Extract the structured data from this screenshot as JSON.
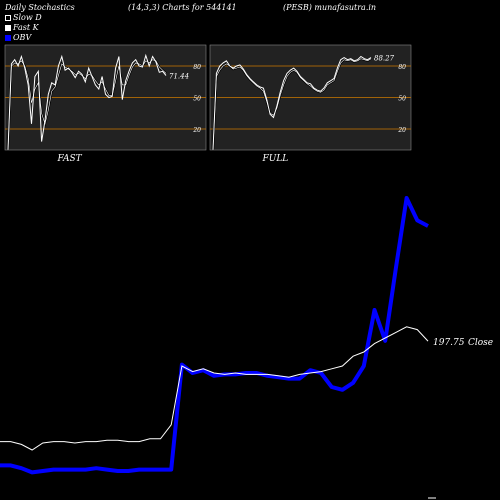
{
  "header": {
    "title": "Daily Stochastics",
    "params": "(14,3,3) Charts for 544141",
    "symbol": "(PESB) munafasutra.in"
  },
  "legend": [
    {
      "label": "Slow  D",
      "color": "#000000"
    },
    {
      "label": "Fast K",
      "color": "#ffffff"
    },
    {
      "label": "OBV",
      "color": "#0000ff"
    }
  ],
  "colors": {
    "background": "#000000",
    "panel": "#222222",
    "level_line": "#cc7a00",
    "obv": "#0000ff",
    "close": "#ffffff"
  },
  "chart_data": [
    {
      "type": "line",
      "panel": "FAST",
      "title": "FAST",
      "ylim": [
        0,
        100
      ],
      "yticks": [
        20,
        50,
        80
      ],
      "last_label": "71.44",
      "series": [
        {
          "name": "Fast K",
          "values": [
            0,
            82,
            86,
            80,
            89,
            78,
            62,
            25,
            70,
            75,
            8,
            28,
            53,
            64,
            62,
            80,
            89,
            76,
            78,
            74,
            69,
            75,
            72,
            65,
            78,
            70,
            62,
            58,
            70,
            53,
            50,
            51,
            78,
            89,
            48,
            66,
            75,
            83,
            86,
            80,
            79,
            90,
            80,
            89,
            84,
            74,
            75,
            71
          ]
        },
        {
          "name": "Slow  D",
          "values": [
            0,
            80,
            83,
            82,
            85,
            80,
            68,
            45,
            58,
            64,
            35,
            25,
            38,
            56,
            60,
            71,
            82,
            79,
            77,
            75,
            72,
            73,
            71,
            68,
            72,
            71,
            66,
            62,
            65,
            58,
            52,
            52,
            66,
            80,
            62,
            62,
            71,
            79,
            83,
            82,
            80,
            85,
            83,
            86,
            85,
            79,
            76,
            73
          ]
        }
      ]
    },
    {
      "type": "line",
      "panel": "FULL",
      "title": "FULL",
      "ylim": [
        0,
        100
      ],
      "yticks": [
        20,
        50,
        80
      ],
      "last_label": "88.27",
      "series": [
        {
          "name": "Fast K",
          "values": [
            0,
            73,
            80,
            83,
            85,
            80,
            78,
            80,
            81,
            77,
            72,
            68,
            65,
            62,
            60,
            59,
            48,
            34,
            31,
            42,
            55,
            66,
            73,
            76,
            78,
            75,
            70,
            67,
            64,
            63,
            59,
            57,
            56,
            59,
            64,
            66,
            68,
            78,
            86,
            88,
            86,
            87,
            85,
            86,
            89,
            87,
            86,
            88
          ]
        },
        {
          "name": "Slow  D",
          "values": [
            0,
            70,
            76,
            80,
            82,
            80,
            77,
            78,
            79,
            76,
            71,
            67,
            64,
            61,
            59,
            56,
            46,
            35,
            33,
            40,
            52,
            62,
            70,
            74,
            76,
            74,
            69,
            66,
            63,
            61,
            58,
            56,
            55,
            57,
            62,
            64,
            66,
            75,
            83,
            86,
            85,
            86,
            84,
            85,
            87,
            86,
            85,
            87
          ]
        }
      ]
    },
    {
      "type": "line",
      "panel": "main",
      "last_label": "197.75",
      "close_label": "Close",
      "ylim": [
        90,
        320
      ],
      "series": [
        {
          "name": "Close",
          "values": [
            126,
            126,
            124,
            120,
            125,
            126,
            126,
            125,
            126,
            126,
            127,
            127,
            126,
            126,
            128,
            128,
            138,
            180,
            176,
            178,
            175,
            174,
            175,
            174,
            174,
            174,
            173,
            172,
            174,
            175,
            176,
            178,
            180,
            187,
            190,
            196,
            200,
            204,
            208,
            206,
            197.75
          ]
        },
        {
          "name": "OBV",
          "values": [
            109,
            109,
            107,
            104,
            105,
            106,
            106,
            106,
            106,
            107,
            106,
            105,
            105,
            106,
            106,
            106,
            106,
            181,
            175,
            177,
            173,
            174,
            174,
            175,
            175,
            173,
            172,
            171,
            171,
            177,
            175,
            165,
            163,
            168,
            180,
            220,
            198,
            250,
            300,
            284,
            280
          ]
        }
      ]
    }
  ]
}
